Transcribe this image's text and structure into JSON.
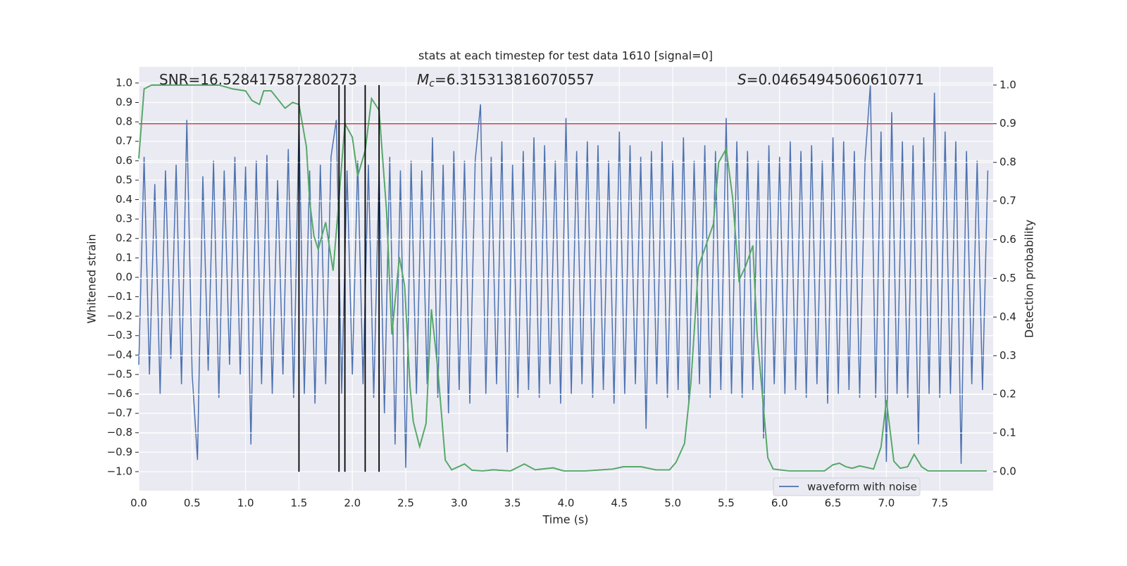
{
  "chart_data": {
    "type": "line",
    "title": "stats at each timestep for test data 1610 [signal=0]",
    "xlabel": "Time (s)",
    "ylabel": "Whitened strain",
    "y2label": "Detection probability",
    "annotations": [
      {
        "text": "SNR=16.528417587280273"
      },
      {
        "symbol": "M",
        "subscript": "c",
        "text": "=6.315313816070557"
      },
      {
        "symbol": "S",
        "text": "=0.04654945060610771"
      }
    ],
    "xlim": [
      0,
      8
    ],
    "ylim": [
      -1.098,
      1.083
    ],
    "y2lim": [
      -0.049,
      1.047
    ],
    "xticks": [
      {
        "value": 0,
        "label": "0.0"
      },
      0.5,
      {
        "value": 1,
        "label": "1.0"
      },
      1.5,
      {
        "value": 2,
        "label": "2.0"
      },
      2.5,
      {
        "value": 3,
        "label": "3.0"
      },
      3.5,
      {
        "value": 4,
        "label": "4.0"
      },
      4.5,
      {
        "value": 5,
        "label": "5.0"
      },
      5.5,
      {
        "value": 6,
        "label": "6.0"
      },
      6.5,
      {
        "value": 7,
        "label": "7.0"
      },
      7.5
    ],
    "yticks": [
      {
        "value": -1,
        "label": "−1.0"
      },
      {
        "value": -0.9,
        "label": "−0.9"
      },
      {
        "value": -0.8,
        "label": "−0.8"
      },
      {
        "value": -0.7,
        "label": "−0.7"
      },
      {
        "value": -0.6,
        "label": "−0.6"
      },
      {
        "value": -0.5,
        "label": "−0.5"
      },
      {
        "value": -0.4,
        "label": "−0.4"
      },
      {
        "value": -0.3,
        "label": "−0.3"
      },
      {
        "value": -0.2,
        "label": "−0.2"
      },
      {
        "value": -0.1,
        "label": "−0.1"
      },
      {
        "value": 0,
        "label": "0.0"
      },
      0.1,
      0.2,
      0.3,
      0.4,
      0.5,
      0.6,
      0.7,
      0.8,
      0.9,
      {
        "value": 1,
        "label": "1.0"
      }
    ],
    "y2ticks": [
      {
        "value": 0,
        "label": "0.0"
      },
      0.1,
      0.2,
      0.3,
      0.4,
      0.5,
      0.6,
      0.7,
      0.8,
      0.9,
      {
        "value": 1,
        "label": "1.0"
      }
    ],
    "grid": true,
    "legend_loc": "best",
    "series": [
      {
        "name": "waveform with noise",
        "color": "#4c72b0",
        "x": [
          0,
          0.05,
          0.1,
          0.15,
          0.2,
          0.25,
          0.3,
          0.35,
          0.4,
          0.45,
          0.5,
          0.55,
          0.6,
          0.65,
          0.7,
          0.75,
          0.8,
          0.85,
          0.9,
          0.95,
          1,
          1.05,
          1.1,
          1.15,
          1.2,
          1.25,
          1.3,
          1.35,
          1.4,
          1.45,
          1.5,
          1.55,
          1.6,
          1.65,
          1.7,
          1.75,
          1.8,
          1.85,
          1.9,
          1.95,
          2,
          2.05,
          2.1,
          2.15,
          2.2,
          2.25,
          2.3,
          2.35,
          2.4,
          2.45,
          2.5,
          2.55,
          2.6,
          2.65,
          2.7,
          2.75,
          2.8,
          2.85,
          2.9,
          2.95,
          3,
          3.05,
          3.1,
          3.15,
          3.2,
          3.25,
          3.3,
          3.35,
          3.4,
          3.45,
          3.5,
          3.55,
          3.6,
          3.65,
          3.7,
          3.75,
          3.8,
          3.85,
          3.9,
          3.95,
          4,
          4.05,
          4.1,
          4.15,
          4.2,
          4.25,
          4.3,
          4.35,
          4.4,
          4.45,
          4.5,
          4.55,
          4.6,
          4.65,
          4.7,
          4.75,
          4.8,
          4.85,
          4.9,
          4.95,
          5,
          5.05,
          5.1,
          5.15,
          5.2,
          5.25,
          5.3,
          5.35,
          5.4,
          5.45,
          5.5,
          5.55,
          5.6,
          5.65,
          5.7,
          5.75,
          5.8,
          5.85,
          5.9,
          5.95,
          6,
          6.05,
          6.1,
          6.15,
          6.2,
          6.25,
          6.3,
          6.35,
          6.4,
          6.45,
          6.5,
          6.55,
          6.6,
          6.65,
          6.7,
          6.75,
          6.8,
          6.85,
          6.9,
          6.95,
          7,
          7.05,
          7.1,
          7.15,
          7.2,
          7.25,
          7.3,
          7.35,
          7.4,
          7.45,
          7.5,
          7.55,
          7.6,
          7.65,
          7.7,
          7.75,
          7.8,
          7.85,
          7.9,
          7.95
        ],
        "values": [
          -0.45,
          0.62,
          -0.5,
          0.48,
          -0.6,
          0.55,
          -0.42,
          0.58,
          -0.55,
          0.81,
          -0.5,
          -0.94,
          0.52,
          -0.48,
          0.6,
          -0.62,
          0.55,
          -0.45,
          0.62,
          -0.5,
          0.57,
          -0.86,
          0.6,
          -0.55,
          0.63,
          -0.6,
          0.5,
          -0.5,
          0.66,
          -0.62,
          0.8,
          -0.6,
          0.55,
          -0.65,
          0.58,
          -0.55,
          0.62,
          0.81,
          -0.6,
          0.55,
          -0.5,
          0.6,
          -0.55,
          0.58,
          -0.62,
          0.55,
          -0.7,
          0.62,
          -0.86,
          0.55,
          -0.98,
          0.6,
          -0.6,
          0.55,
          -0.55,
          0.72,
          -0.62,
          0.58,
          -0.7,
          0.65,
          -0.58,
          0.6,
          -0.65,
          0.6,
          0.89,
          -0.6,
          0.62,
          -0.55,
          0.7,
          -0.9,
          0.58,
          -0.62,
          0.65,
          -0.58,
          0.72,
          -0.62,
          0.68,
          -0.55,
          0.6,
          -0.65,
          0.82,
          -0.6,
          0.65,
          -0.55,
          0.7,
          -0.62,
          0.68,
          -0.58,
          0.6,
          -0.65,
          0.75,
          -0.6,
          0.68,
          -0.55,
          0.62,
          -0.78,
          0.65,
          -0.55,
          0.7,
          -0.62,
          0.6,
          -0.58,
          0.72,
          -0.65,
          0.6,
          -0.55,
          0.68,
          -0.62,
          0.65,
          -0.58,
          0.82,
          -0.6,
          0.7,
          -0.62,
          0.65,
          -0.58,
          0.6,
          -0.83,
          0.68,
          -0.55,
          0.62,
          -0.6,
          0.7,
          -0.58,
          0.65,
          -0.62,
          0.68,
          -0.55,
          0.6,
          -0.65,
          0.72,
          -0.6,
          0.7,
          -0.58,
          0.65,
          -0.62,
          0.6,
          0.99,
          -0.62,
          0.75,
          -0.95,
          0.85,
          -0.6,
          0.7,
          -0.62,
          0.68,
          -0.86,
          0.72,
          -0.6,
          0.95,
          -0.62,
          0.75,
          -0.6,
          0.7,
          -0.96,
          0.65,
          -0.55,
          0.6,
          -0.58,
          0.55
        ]
      },
      {
        "color": "#55a868",
        "axis": "y2",
        "x": [
          0,
          0.05,
          0.12,
          0.75,
          0.88,
          1,
          1.06,
          1.13,
          1.17,
          1.24,
          1.37,
          1.44,
          1.5,
          1.57,
          1.6,
          1.64,
          1.68,
          1.75,
          1.82,
          1.87,
          1.93,
          2,
          2.05,
          2.12,
          2.18,
          2.25,
          2.32,
          2.37,
          2.44,
          2.49,
          2.54,
          2.57,
          2.63,
          2.69,
          2.74,
          2.8,
          2.87,
          2.93,
          3.05,
          3.12,
          3.22,
          3.32,
          3.48,
          3.61,
          3.71,
          3.88,
          3.98,
          4.18,
          4.44,
          4.54,
          4.7,
          4.84,
          4.97,
          5.03,
          5.11,
          5.17,
          5.24,
          5.38,
          5.43,
          5.5,
          5.56,
          5.62,
          5.68,
          5.75,
          5.79,
          5.89,
          5.94,
          6.09,
          6.42,
          6.5,
          6.56,
          6.62,
          6.68,
          6.75,
          6.88,
          6.95,
          7,
          7.07,
          7.13,
          7.2,
          7.26,
          7.33,
          7.39,
          7.61,
          7.94
        ],
        "values": [
          0.81,
          0.99,
          1,
          1,
          0.99,
          0.985,
          0.96,
          0.95,
          0.985,
          0.985,
          0.94,
          0.955,
          0.95,
          0.84,
          0.7,
          0.61,
          0.575,
          0.645,
          0.52,
          0.69,
          0.9,
          0.865,
          0.765,
          0.83,
          0.965,
          0.935,
          0.675,
          0.355,
          0.555,
          0.48,
          0.22,
          0.13,
          0.065,
          0.125,
          0.42,
          0.265,
          0.03,
          0.005,
          0.02,
          0.004,
          0.002,
          0.005,
          0.002,
          0.02,
          0.005,
          0.01,
          0.002,
          0.002,
          0.007,
          0.013,
          0.013,
          0.005,
          0.005,
          0.024,
          0.073,
          0.23,
          0.53,
          0.64,
          0.8,
          0.835,
          0.71,
          0.495,
          0.53,
          0.585,
          0.355,
          0.036,
          0.007,
          0.002,
          0.002,
          0.018,
          0.022,
          0.013,
          0.009,
          0.015,
          0.007,
          0.064,
          0.185,
          0.027,
          0.009,
          0.013,
          0.045,
          0.013,
          0.002,
          0.002,
          0.002
        ]
      }
    ],
    "hlines": [
      {
        "y": 0.9,
        "axis": "y2",
        "color": "#c44e52"
      }
    ],
    "vlines": {
      "x": [
        1.5,
        1.875,
        1.93,
        2.12,
        2.25
      ],
      "y2range": [
        0,
        1
      ],
      "color": "#000000"
    }
  }
}
